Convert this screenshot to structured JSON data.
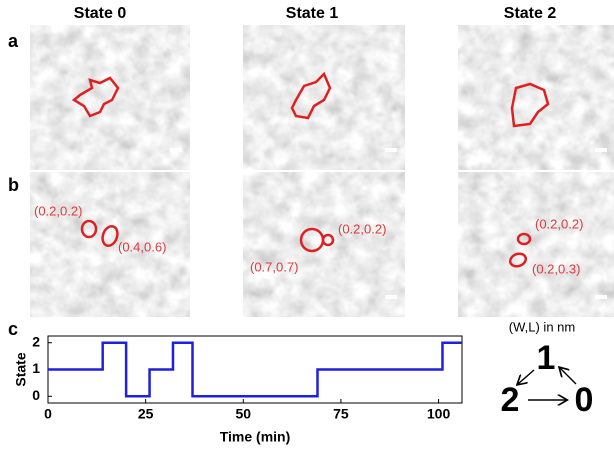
{
  "column_titles": [
    "State 0",
    "State 1",
    "State 2"
  ],
  "panel_labels": [
    "a",
    "b",
    "c"
  ],
  "annotations": [
    "(0.2,0.2)",
    "(0.4,0.6)",
    "(0.7,0.7)",
    "(0.2,0.2)",
    "(0.2,0.2)",
    "(0.2,0.3)"
  ],
  "legend_note": "(W,L) in nm",
  "state_diagram": {
    "top": "1",
    "left": "2",
    "right": "0"
  },
  "chart_data": {
    "type": "line",
    "x_label": "Time (min)",
    "y_label": "State",
    "x": [
      0,
      14,
      14,
      20,
      20,
      26,
      26,
      32,
      32,
      37,
      37,
      69,
      69,
      101,
      101,
      106
    ],
    "values": [
      1,
      1,
      2,
      2,
      0,
      0,
      1,
      1,
      2,
      2,
      0,
      0,
      1,
      1,
      2,
      2
    ],
    "color": "#1f1fe0",
    "xlim": [
      0,
      106
    ],
    "ylim": [
      -0.25,
      2.25
    ],
    "xticks": [
      0,
      25,
      50,
      75,
      100
    ],
    "yticks": [
      0,
      1,
      2
    ]
  }
}
